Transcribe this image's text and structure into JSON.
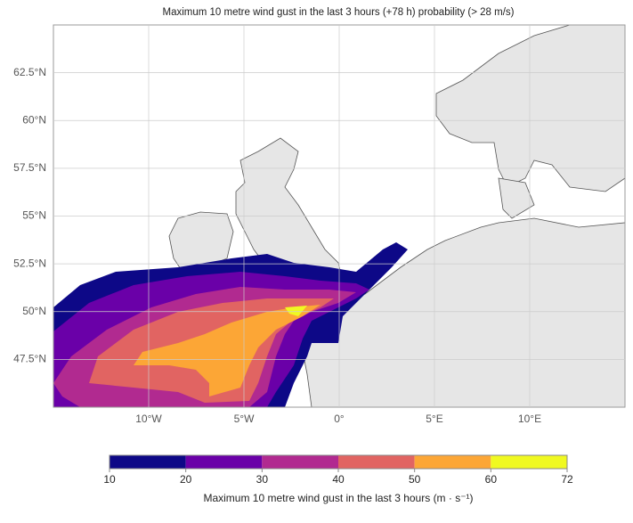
{
  "chart_data": {
    "type": "map",
    "title": "Maximum 10 metre wind gust in the last 3 hours (+78 h) probability (> 28 m/s)",
    "xlim": [
      -15,
      15
    ],
    "xticks": [
      {
        "value": -10,
        "label": "10°W"
      },
      {
        "value": -5,
        "label": "5°W"
      },
      {
        "value": 0,
        "label": "0°"
      },
      {
        "value": 5,
        "label": "5°E"
      },
      {
        "value": 10,
        "label": "10°E"
      }
    ],
    "ylim": [
      45,
      65
    ],
    "yticks": [
      {
        "value": 47.5,
        "label": "47.5°N"
      },
      {
        "value": 50,
        "label": "50°N"
      },
      {
        "value": 52.5,
        "label": "52.5°N"
      },
      {
        "value": 55,
        "label": "55°N"
      },
      {
        "value": 57.5,
        "label": "57.5°N"
      },
      {
        "value": 60,
        "label": "60°N"
      },
      {
        "value": 62.5,
        "label": "62.5°N"
      }
    ],
    "grid": true,
    "colorbar": {
      "levels": [
        10,
        20,
        30,
        40,
        50,
        60,
        72
      ],
      "colors": [
        "#0d0887",
        "#6a00a8",
        "#b12a90",
        "#e16462",
        "#fca636",
        "#f0f921"
      ],
      "label": "Maximum 10 metre wind gust in the last 3 hours (m · s⁻¹)"
    }
  }
}
